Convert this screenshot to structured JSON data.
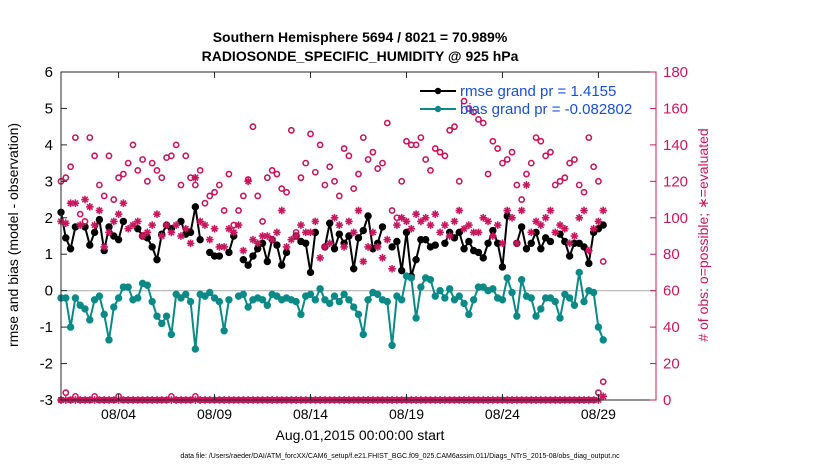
{
  "chart_data": {
    "type": "line",
    "title": "Southern Hemisphere 5694 / 8021 = 70.989%",
    "subtitle": "RADIOSONDE_SPECIFIC_HUMIDITY @ 925 hPa",
    "xlabel": "Aug.01,2015 00:00:00 start",
    "ylabel": "rmse and bias (model - observation)",
    "ylabel_right": "# of obs: o=possible; ∗=evaluated",
    "footnote": "data file: /Users/raeder/DAI/ATM_forcXX/CAM6_setup/f.e21.FHIST_BGC.f09_025.CAM6assim.011/Diags_NTrS_2015-08/obs_diag_output.nc",
    "ylim": [
      -3,
      6
    ],
    "ylim_right": [
      0,
      180
    ],
    "xlim": [
      0,
      31
    ],
    "yticks": [
      "-3",
      "-2",
      "-1",
      "0",
      "1",
      "2",
      "3",
      "4",
      "5",
      "6"
    ],
    "yticks_right": [
      "0",
      "20",
      "40",
      "60",
      "80",
      "100",
      "120",
      "140",
      "160",
      "180"
    ],
    "xticks": [
      {
        "label": "08/04",
        "day": 3
      },
      {
        "label": "08/09",
        "day": 8
      },
      {
        "label": "08/14",
        "day": 13
      },
      {
        "label": "08/19",
        "day": 18
      },
      {
        "label": "08/24",
        "day": 23
      },
      {
        "label": "08/29",
        "day": 28
      }
    ],
    "x_start_day": 0.0,
    "x_step_day": 0.25,
    "zero_line": 0,
    "series": [
      {
        "name": "rmse grand pr = 1.4155",
        "color": "#000000",
        "axis": "left",
        "values": [
          2.15,
          1.45,
          1.15,
          1.75,
          null,
          1.75,
          1.25,
          1.6,
          1.95,
          1.1,
          1.75,
          1.5,
          1.4,
          1.9,
          null,
          null,
          1.7,
          1.5,
          1.45,
          1.2,
          0.85,
          1.55,
          1.8,
          1.7,
          null,
          1.9,
          1.55,
          1.6,
          2.3,
          1.4,
          null,
          1.05,
          0.95,
          0.95,
          null,
          1.05,
          1.5,
          null,
          0.85,
          0.7,
          0.95,
          1.15,
          1.3,
          0.8,
          1.4,
          1.25,
          0.7,
          1.05,
          null,
          1.5,
          1.35,
          1.3,
          0.5,
          1.6,
          null,
          1.2,
          1.85,
          1.15,
          1.55,
          1.3,
          1.5,
          0.6,
          1.45,
          1.65,
          2.05,
          1.15,
          1.3,
          1.75,
          null,
          1.2,
          1.35,
          0.55,
          1.6,
          0.4,
          0.85,
          1.4,
          1.4,
          1.2,
          1.25,
          null,
          1.3,
          1.6,
          1.45,
          1.6,
          1.15,
          1.35,
          1.1,
          1.05,
          0.9,
          1.3,
          1.65,
          1.3,
          0.65,
          2.05,
          null,
          1.3,
          1.75,
          1.15,
          1.3,
          1.6,
          1.15,
          1.45,
          1.35,
          null,
          1.55,
          1.35,
          0.95,
          1.3,
          1.3,
          1.2,
          0.75,
          1.6,
          1.7,
          1.8
        ]
      },
      {
        "name": "bias grand pr = -0.082802",
        "color": "#0a8a87",
        "axis": "left",
        "values": [
          -0.2,
          -0.2,
          -1.0,
          -0.2,
          -0.4,
          -0.5,
          -0.8,
          -0.25,
          -0.15,
          -0.65,
          -1.35,
          -0.45,
          -0.2,
          0.1,
          0.1,
          -0.25,
          -0.2,
          0.2,
          0.15,
          -0.3,
          -0.7,
          -0.9,
          -0.7,
          -1.2,
          -0.1,
          -0.2,
          -0.1,
          -0.3,
          -1.6,
          -0.1,
          -0.15,
          -0.05,
          -0.2,
          -0.3,
          -1.1,
          -0.25,
          null,
          -0.15,
          -0.1,
          -0.45,
          -0.25,
          -0.2,
          -0.25,
          -0.4,
          -0.1,
          -0.15,
          -0.25,
          -0.2,
          -0.25,
          -0.3,
          -0.65,
          -0.15,
          -0.1,
          -0.25,
          0.05,
          -0.25,
          -0.35,
          -0.15,
          -0.3,
          -0.1,
          -0.25,
          -0.45,
          -0.65,
          -1.2,
          -0.25,
          -0.05,
          -0.1,
          -0.25,
          -0.3,
          -1.5,
          -0.15,
          -0.25,
          0.4,
          0.35,
          -0.75,
          0.1,
          0.35,
          0.3,
          -0.15,
          0.0,
          -0.2,
          0.05,
          -0.25,
          -0.15,
          -0.35,
          -0.65,
          -0.25,
          0.1,
          0.1,
          0.0,
          0.05,
          -0.2,
          -0.25,
          0.35,
          -0.05,
          -0.7,
          0.3,
          -0.15,
          -0.2,
          -0.7,
          -0.5,
          -0.2,
          -0.2,
          -0.3,
          -0.75,
          -0.1,
          -0.2,
          -0.4,
          0.5,
          -0.3,
          0.0,
          -0.05,
          -1.0,
          -1.35
        ]
      },
      {
        "name": "possible",
        "color": "#c8175e",
        "axis": "right",
        "marker": "circle",
        "values": [
          120,
          122,
          128,
          144,
          102,
          98,
          144,
          134,
          118,
          112,
          134,
          110,
          122,
          124,
          130,
          140,
          126,
          132,
          120,
          130,
          126,
          122,
          133,
          134,
          140,
          118,
          134,
          122,
          118,
          126,
          108,
          112,
          114,
          118,
          104,
          124,
          96,
          104,
          112,
          121,
          150,
          112,
          98,
          122,
          126,
          124,
          116,
          114,
          148,
          92,
          122,
          130,
          146,
          125,
          140,
          118,
          128,
          120,
          112,
          138,
          134,
          116,
          124,
          144,
          132,
          136,
          127,
          130,
          152,
          104,
          100,
          120,
          142,
          140,
          140,
          144,
          132,
          126,
          138,
          136,
          134,
          148,
          150,
          120,
          164,
          160,
          158,
          154,
          152,
          124,
          142,
          138,
          130,
          132,
          136,
          118,
          110,
          124,
          130,
          144,
          142,
          134,
          136,
          118,
          120,
          122,
          130,
          132,
          118,
          114,
          144,
          128,
          120,
          76
        ]
      },
      {
        "name": "evaluated",
        "color": "#c8175e",
        "axis": "right",
        "marker": "asterisk",
        "values": [
          98,
          97,
          108,
          108,
          96,
          110,
          106,
          96,
          104,
          84,
          92,
          98,
          102,
          108,
          94,
          96,
          98,
          90,
          92,
          96,
          102,
          90,
          96,
          92,
          96,
          90,
          94,
          86,
          122,
          98,
          96,
          88,
          94,
          84,
          84,
          94,
          92,
          96,
          82,
          120,
          88,
          86,
          90,
          90,
          88,
          92,
          104,
          84,
          88,
          90,
          96,
          92,
          92,
          98,
          78,
          84,
          86,
          100,
          96,
          84,
          98,
          92,
          104,
          76,
          84,
          92,
          84,
          78,
          88,
          72,
          96,
          100,
          98,
          94,
          102,
          98,
          100,
          96,
          102,
          92,
          96,
          90,
          98,
          104,
          94,
          96,
          92,
          92,
          100,
          98,
          90,
          96,
          86,
          104,
          100,
          86,
          104,
          118,
          92,
          98,
          96,
          100,
          104,
          92,
          96,
          94,
          86,
          90,
          100,
          104,
          82,
          94,
          98,
          104
        ]
      },
      {
        "name": "possible-surface",
        "color": "#c8175e",
        "axis": "right",
        "marker": "circle",
        "values": [
          0,
          4,
          0,
          2,
          0,
          0,
          0,
          2,
          0,
          0,
          0,
          0,
          2,
          0,
          0,
          0,
          0,
          0,
          0,
          0,
          0,
          0,
          0,
          2,
          0,
          0,
          0,
          0,
          2,
          0,
          0,
          0,
          0,
          0,
          0,
          0,
          0,
          0,
          0,
          0,
          0,
          0,
          0,
          0,
          0,
          0,
          0,
          0,
          0,
          0,
          0,
          0,
          0,
          0,
          0,
          0,
          0,
          0,
          0,
          0,
          0,
          0,
          0,
          0,
          0,
          0,
          0,
          0,
          0,
          0,
          0,
          0,
          0,
          0,
          0,
          0,
          0,
          0,
          0,
          0,
          0,
          0,
          0,
          0,
          0,
          0,
          0,
          0,
          0,
          0,
          0,
          0,
          0,
          0,
          0,
          0,
          0,
          0,
          0,
          0,
          0,
          0,
          0,
          0,
          0,
          0,
          0,
          0,
          0,
          0,
          0,
          0,
          4,
          10
        ]
      },
      {
        "name": "evaluated-surface",
        "color": "#c8175e",
        "axis": "right",
        "marker": "asterisk",
        "values": [
          0,
          0,
          0,
          0,
          0,
          0,
          0,
          0,
          0,
          0,
          0,
          0,
          0,
          0,
          0,
          0,
          0,
          0,
          0,
          0,
          0,
          0,
          0,
          0,
          0,
          0,
          0,
          0,
          0,
          0,
          0,
          0,
          0,
          0,
          0,
          0,
          0,
          0,
          0,
          0,
          0,
          0,
          0,
          0,
          0,
          0,
          0,
          0,
          0,
          0,
          0,
          0,
          0,
          0,
          0,
          0,
          0,
          0,
          0,
          0,
          0,
          0,
          0,
          0,
          0,
          0,
          0,
          0,
          0,
          0,
          0,
          0,
          0,
          0,
          0,
          0,
          0,
          0,
          0,
          0,
          0,
          0,
          0,
          0,
          0,
          0,
          0,
          0,
          0,
          0,
          0,
          0,
          0,
          0,
          0,
          0,
          0,
          0,
          0,
          0,
          0,
          0,
          0,
          0,
          0,
          0,
          0,
          0,
          0,
          0,
          0,
          0,
          0,
          2
        ]
      }
    ],
    "legend": {
      "placement": "top-right",
      "entries": [
        "rmse grand pr = 1.4155",
        "bias grand pr = -0.082802"
      ]
    }
  }
}
